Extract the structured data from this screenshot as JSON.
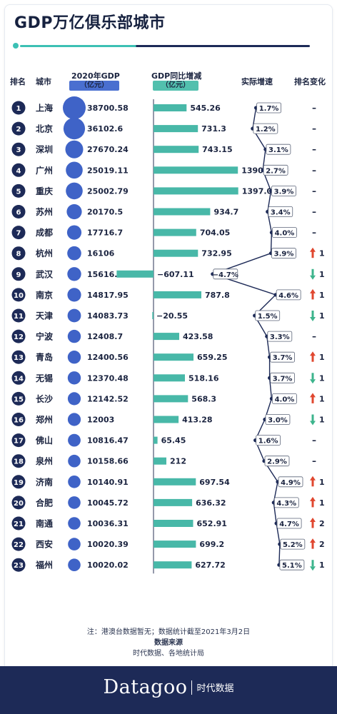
{
  "title": "GDP万亿俱乐部城市",
  "headers": {
    "rank": "排名",
    "city": "城市",
    "gdp": "2020年GDP",
    "gdp_unit": "（亿元）",
    "change": "GDP同比增减",
    "change_unit": "（亿元）",
    "growth": "实际增速",
    "rank_change": "排名变化"
  },
  "colors": {
    "accent": "#3cc0b4",
    "navy": "#1d2a57",
    "circle": "#3f63c7",
    "bar": "#48b8a8",
    "up": "#e0472f",
    "down": "#3cb48c"
  },
  "chart_data": {
    "type": "table",
    "columns": [
      "排名",
      "城市",
      "2020年GDP（亿元）",
      "GDP同比增减（亿元）",
      "实际增速",
      "排名变化"
    ],
    "rows": [
      {
        "rank": "1",
        "city": "上海",
        "gdp": "38700.58",
        "gdp_value": 38700.58,
        "change": "545.26",
        "change_value": 545.26,
        "growth": "1.7%",
        "growth_value": 1.7,
        "rank_change": "–",
        "rank_dir": "none"
      },
      {
        "rank": "2",
        "city": "北京",
        "gdp": "36102.6",
        "gdp_value": 36102.6,
        "change": "731.3",
        "change_value": 731.3,
        "growth": "1.2%",
        "growth_value": 1.2,
        "rank_change": "–",
        "rank_dir": "none"
      },
      {
        "rank": "3",
        "city": "深圳",
        "gdp": "27670.24",
        "gdp_value": 27670.24,
        "change": "743.15",
        "change_value": 743.15,
        "growth": "3.1%",
        "growth_value": 3.1,
        "rank_change": "–",
        "rank_dir": "none"
      },
      {
        "rank": "4",
        "city": "广州",
        "gdp": "25019.11",
        "gdp_value": 25019.11,
        "change": "1390.51",
        "change_value": 1390.51,
        "growth": "2.7%",
        "growth_value": 2.7,
        "rank_change": "–",
        "rank_dir": "none"
      },
      {
        "rank": "5",
        "city": "重庆",
        "gdp": "25002.79",
        "gdp_value": 25002.79,
        "change": "1397.02",
        "change_value": 1397.02,
        "growth": "3.9%",
        "growth_value": 3.9,
        "rank_change": "–",
        "rank_dir": "none"
      },
      {
        "rank": "6",
        "city": "苏州",
        "gdp": "20170.5",
        "gdp_value": 20170.5,
        "change": "934.7",
        "change_value": 934.7,
        "growth": "3.4%",
        "growth_value": 3.4,
        "rank_change": "–",
        "rank_dir": "none"
      },
      {
        "rank": "7",
        "city": "成都",
        "gdp": "17716.7",
        "gdp_value": 17716.7,
        "change": "704.05",
        "change_value": 704.05,
        "growth": "4.0%",
        "growth_value": 4.0,
        "rank_change": "–",
        "rank_dir": "none"
      },
      {
        "rank": "8",
        "city": "杭州",
        "gdp": "16106",
        "gdp_value": 16106,
        "change": "732.95",
        "change_value": 732.95,
        "growth": "3.9%",
        "growth_value": 3.9,
        "rank_change": "1",
        "rank_dir": "up"
      },
      {
        "rank": "9",
        "city": "武汉",
        "gdp": "15616.1",
        "gdp_value": 15616.1,
        "change": "−607.11",
        "change_value": -607.11,
        "growth": "−4.7%",
        "growth_value": -4.7,
        "rank_change": "1",
        "rank_dir": "down"
      },
      {
        "rank": "10",
        "city": "南京",
        "gdp": "14817.95",
        "gdp_value": 14817.95,
        "change": "787.8",
        "change_value": 787.8,
        "growth": "4.6%",
        "growth_value": 4.6,
        "rank_change": "1",
        "rank_dir": "up"
      },
      {
        "rank": "11",
        "city": "天津",
        "gdp": "14083.73",
        "gdp_value": 14083.73,
        "change": "−20.55",
        "change_value": -20.55,
        "growth": "1.5%",
        "growth_value": 1.5,
        "rank_change": "1",
        "rank_dir": "down"
      },
      {
        "rank": "12",
        "city": "宁波",
        "gdp": "12408.7",
        "gdp_value": 12408.7,
        "change": "423.58",
        "change_value": 423.58,
        "growth": "3.3%",
        "growth_value": 3.3,
        "rank_change": "–",
        "rank_dir": "none"
      },
      {
        "rank": "13",
        "city": "青岛",
        "gdp": "12400.56",
        "gdp_value": 12400.56,
        "change": "659.25",
        "change_value": 659.25,
        "growth": "3.7%",
        "growth_value": 3.7,
        "rank_change": "1",
        "rank_dir": "up"
      },
      {
        "rank": "14",
        "city": "无锡",
        "gdp": "12370.48",
        "gdp_value": 12370.48,
        "change": "518.16",
        "change_value": 518.16,
        "growth": "3.7%",
        "growth_value": 3.7,
        "rank_change": "1",
        "rank_dir": "down"
      },
      {
        "rank": "15",
        "city": "长沙",
        "gdp": "12142.52",
        "gdp_value": 12142.52,
        "change": "568.3",
        "change_value": 568.3,
        "growth": "4.0%",
        "growth_value": 4.0,
        "rank_change": "1",
        "rank_dir": "up"
      },
      {
        "rank": "16",
        "city": "郑州",
        "gdp": "12003",
        "gdp_value": 12003,
        "change": "413.28",
        "change_value": 413.28,
        "growth": "3.0%",
        "growth_value": 3.0,
        "rank_change": "1",
        "rank_dir": "down"
      },
      {
        "rank": "17",
        "city": "佛山",
        "gdp": "10816.47",
        "gdp_value": 10816.47,
        "change": "65.45",
        "change_value": 65.45,
        "growth": "1.6%",
        "growth_value": 1.6,
        "rank_change": "–",
        "rank_dir": "none"
      },
      {
        "rank": "18",
        "city": "泉州",
        "gdp": "10158.66",
        "gdp_value": 10158.66,
        "change": "212",
        "change_value": 212,
        "growth": "2.9%",
        "growth_value": 2.9,
        "rank_change": "–",
        "rank_dir": "none"
      },
      {
        "rank": "19",
        "city": "济南",
        "gdp": "10140.91",
        "gdp_value": 10140.91,
        "change": "697.54",
        "change_value": 697.54,
        "growth": "4.9%",
        "growth_value": 4.9,
        "rank_change": "1",
        "rank_dir": "up"
      },
      {
        "rank": "20",
        "city": "合肥",
        "gdp": "10045.72",
        "gdp_value": 10045.72,
        "change": "636.32",
        "change_value": 636.32,
        "growth": "4.3%",
        "growth_value": 4.3,
        "rank_change": "1",
        "rank_dir": "up"
      },
      {
        "rank": "21",
        "city": "南通",
        "gdp": "10036.31",
        "gdp_value": 10036.31,
        "change": "652.91",
        "change_value": 652.91,
        "growth": "4.7%",
        "growth_value": 4.7,
        "rank_change": "2",
        "rank_dir": "up"
      },
      {
        "rank": "22",
        "city": "西安",
        "gdp": "10020.39",
        "gdp_value": 10020.39,
        "change": "699.2",
        "change_value": 699.2,
        "growth": "5.2%",
        "growth_value": 5.2,
        "rank_change": "2",
        "rank_dir": "up"
      },
      {
        "rank": "23",
        "city": "福州",
        "gdp": "10020.02",
        "gdp_value": 10020.02,
        "change": "627.72",
        "change_value": 627.72,
        "growth": "5.1%",
        "growth_value": 5.1,
        "rank_change": "1",
        "rank_dir": "down"
      }
    ]
  },
  "notes": {
    "note": "注：港澳台数据暂无；数据统计截至2021年3月2日",
    "source_label": "数据来源",
    "source": "时代数据、各地统计局"
  },
  "footer": {
    "brand": "Datagoo",
    "brand_cn": "时代数据"
  }
}
